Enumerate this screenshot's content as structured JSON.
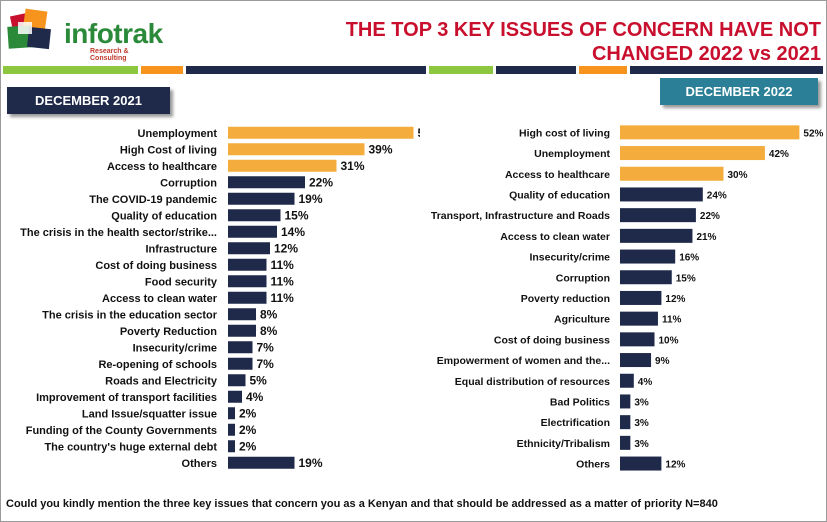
{
  "header": {
    "logo_text": "infotrak",
    "logo_subtext": "Research & Consulting",
    "title_line1": "THE TOP 3 KEY ISSUES OF CONCERN HAVE NOT",
    "title_line2": "CHANGED 2022 vs 2021"
  },
  "colors": {
    "highlight": "#f4ac3c",
    "bar": "#1f2a4a",
    "title": "#c8102e",
    "left_header": "#1f2a4a",
    "right_header": "#2b7f96",
    "stripe_green": "#8dc63f",
    "stripe_orange": "#f7941d",
    "stripe_navy": "#1f2a4a"
  },
  "footnote": "Could you kindly mention the three key issues that concern you as a Kenyan and that should be addressed as a matter of priority N=840",
  "chart_data": [
    {
      "type": "bar",
      "orientation": "horizontal",
      "title": "DECEMBER 2021",
      "unit": "%",
      "categories": [
        "Unemployment",
        "High Cost of living",
        "Access to healthcare",
        "Corruption",
        "The COVID-19 pandemic",
        "Quality of education",
        "The crisis in the health sector/strike...",
        "Infrastructure",
        "Cost of doing business",
        "Food security",
        "Access to clean water",
        "The crisis in the education sector",
        "Poverty Reduction",
        "Insecurity/crime",
        "Re-opening of schools",
        "Roads and Electricity",
        "Improvement of transport facilities",
        "Land Issue/squatter issue",
        "Funding of the County Governments",
        "The country's huge external debt",
        "Others"
      ],
      "values": [
        53,
        39,
        31,
        22,
        19,
        15,
        14,
        12,
        11,
        11,
        11,
        8,
        8,
        7,
        7,
        5,
        4,
        2,
        2,
        2,
        19
      ],
      "highlighted": [
        0,
        1,
        2
      ]
    },
    {
      "type": "bar",
      "orientation": "horizontal",
      "title": "DECEMBER 2022",
      "unit": "%",
      "categories": [
        "High cost of living",
        "Unemployment",
        "Access to healthcare",
        "Quality of education",
        "Transport, Infrastructure and Roads",
        "Access to clean water",
        "Insecurity/crime",
        "Corruption",
        "Poverty reduction",
        "Agriculture",
        "Cost of doing business",
        "Empowerment of women and the...",
        "Equal distribution of resources",
        "Bad Politics",
        "Electrification",
        "Ethnicity/Tribalism",
        "Others"
      ],
      "values": [
        52,
        42,
        30,
        24,
        22,
        21,
        16,
        15,
        12,
        11,
        10,
        9,
        4,
        3,
        3,
        3,
        12
      ],
      "highlighted": [
        0,
        1,
        2
      ]
    }
  ]
}
